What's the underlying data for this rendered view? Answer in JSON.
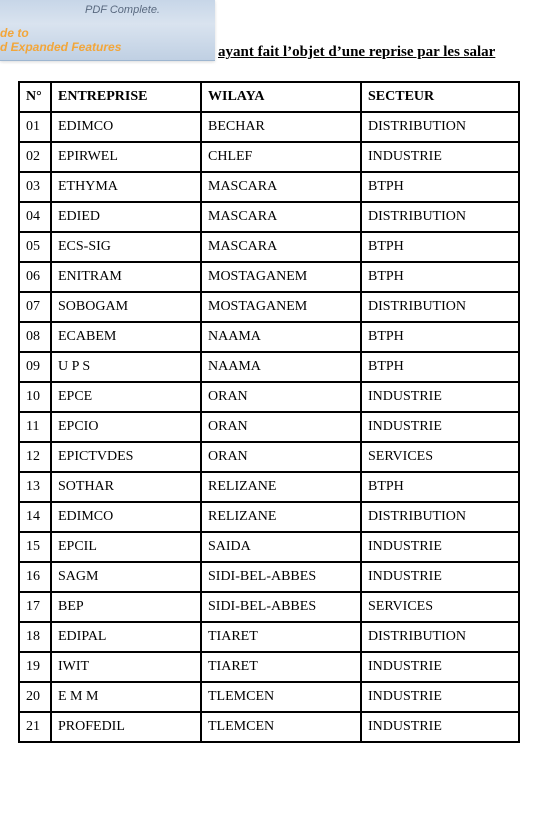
{
  "banner": {
    "tagline": "PDF Complete.",
    "line1": "de to",
    "line2": "d Expanded Features"
  },
  "caption": " ayant fait l’objet d’une reprise par les salar",
  "table": {
    "columns": [
      "N°",
      "ENTREPRISE",
      "WILAYA",
      "SECTEUR"
    ],
    "rows": [
      [
        "01",
        "EDIMCO",
        "BECHAR",
        "DISTRIBUTION"
      ],
      [
        "02",
        "EPIRWEL",
        "CHLEF",
        "INDUSTRIE"
      ],
      [
        "03",
        "ETHYMA",
        "MASCARA",
        "BTPH"
      ],
      [
        "04",
        "EDIED",
        "MASCARA",
        "DISTRIBUTION"
      ],
      [
        "05",
        "ECS-SIG",
        "MASCARA",
        "BTPH"
      ],
      [
        "06",
        "ENITRAM",
        "MOSTAGANEM",
        "BTPH"
      ],
      [
        "07",
        "SOBOGAM",
        "MOSTAGANEM",
        "DISTRIBUTION"
      ],
      [
        "08",
        "ECABEM",
        "NAAMA",
        "BTPH"
      ],
      [
        "09",
        "U P S",
        "NAAMA",
        "BTPH"
      ],
      [
        "10",
        "EPCE",
        "ORAN",
        "INDUSTRIE"
      ],
      [
        "11",
        "EPCIO",
        "ORAN",
        "INDUSTRIE"
      ],
      [
        "12",
        "EPICTVDES",
        "ORAN",
        "SERVICES"
      ],
      [
        "13",
        "SOTHAR",
        "RELIZANE",
        "BTPH"
      ],
      [
        "14",
        "EDIMCO",
        "RELIZANE",
        "DISTRIBUTION"
      ],
      [
        "15",
        "EPCIL",
        "SAIDA",
        "INDUSTRIE"
      ],
      [
        "16",
        "SAGM",
        "SIDI-BEL-ABBES",
        "INDUSTRIE"
      ],
      [
        "17",
        "BEP",
        "SIDI-BEL-ABBES",
        "SERVICES"
      ],
      [
        "18",
        "EDIPAL",
        "TIARET",
        "DISTRIBUTION"
      ],
      [
        "19",
        "IWIT",
        "TIARET",
        "INDUSTRIE"
      ],
      [
        "20",
        "E M M",
        "TLEMCEN",
        "INDUSTRIE"
      ],
      [
        "21",
        "PROFEDIL",
        "TLEMCEN",
        "INDUSTRIE"
      ]
    ]
  }
}
